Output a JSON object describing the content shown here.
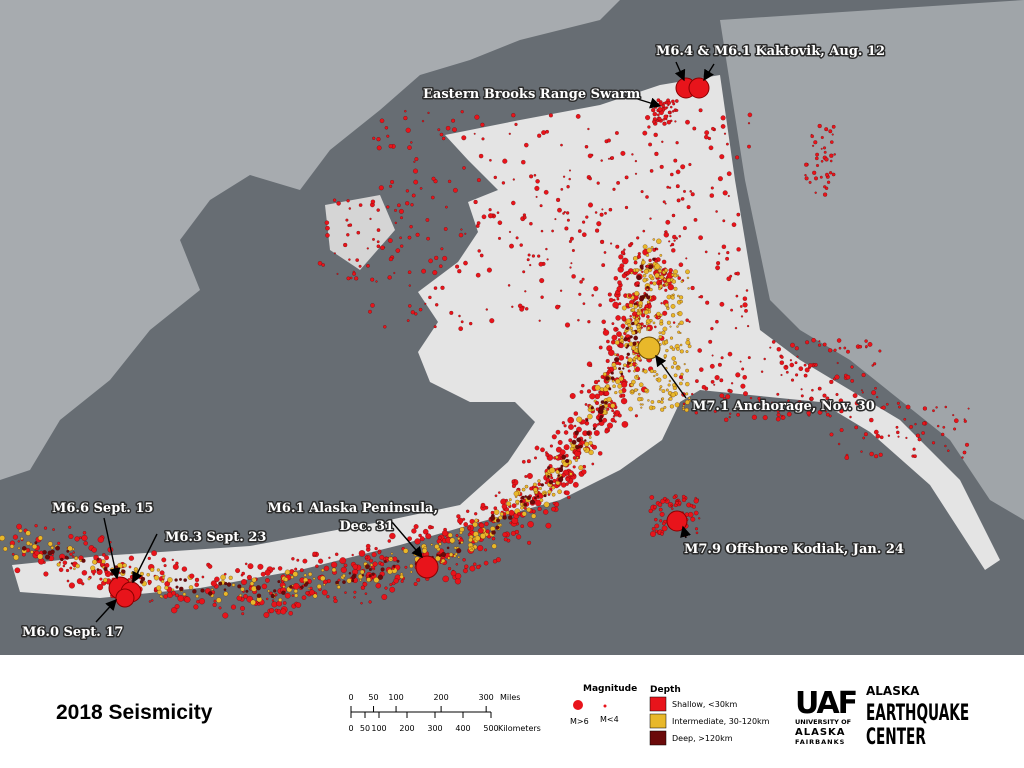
{
  "map": {
    "annotations": {
      "kaktovik": "M6.4 & M6.1 Kaktovik, Aug. 12",
      "brooks": "Eastern Brooks Range Swarm",
      "anchorage": "M7.1 Anchorage, Nov. 30",
      "kodiak": "M7.9 Offshore Kodiak, Jan. 24",
      "peninsula": [
        "M6.1 Alaska Peninsula,",
        "Dec. 31"
      ],
      "sept15": "M6.6 Sept. 15",
      "sept23": "M6.3 Sept. 23",
      "sept17": "M6.0 Sept. 17"
    }
  },
  "legend": {
    "title": "2018 Seismicity",
    "scale": {
      "miles": [
        0,
        50,
        100,
        200,
        300
      ],
      "miles_unit": "Miles",
      "kilometers": [
        0,
        50,
        100,
        200,
        300,
        400,
        500
      ],
      "kilometers_unit": "Kilometers"
    },
    "magnitude": {
      "title": "Magnitude",
      "large": "M>6",
      "small": "M<4"
    },
    "depth": {
      "title": "Depth",
      "items": [
        "Shallow, <30km",
        "Intermediate, 30-120km",
        "Deep, >120km"
      ]
    }
  },
  "logo": {
    "mark": "UAF",
    "university": [
      "UNIVERSITY OF",
      "ALASKA",
      "FAIRBANKS"
    ],
    "center": [
      "ALASKA",
      "EARTHQUAKE",
      "CENTER"
    ]
  }
}
